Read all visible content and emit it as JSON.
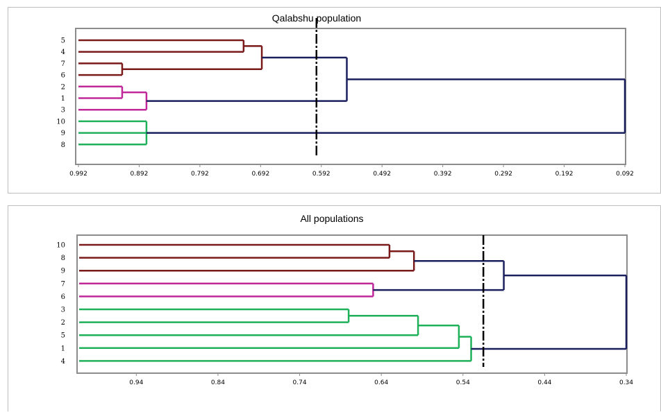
{
  "chart_data": [
    {
      "type": "dendrogram",
      "title": "Qalabshu population",
      "orientation": "leaves-left",
      "x_ticks": [
        "0.992",
        "0.892",
        "0.792",
        "0.692",
        "0.592",
        "0.492",
        "0.392",
        "0.292",
        "0.192",
        "0.092"
      ],
      "xlim": [
        0.992,
        0.092
      ],
      "cut_line": 0.6,
      "leaves": [
        "5",
        "4",
        "7",
        "6",
        "2",
        "1",
        "3",
        "10",
        "9",
        "8"
      ],
      "merges": [
        {
          "id": "a",
          "children": [
            "5",
            "4"
          ],
          "height": 0.72,
          "color": "#7a1a1a"
        },
        {
          "id": "b",
          "children": [
            "7",
            "6"
          ],
          "height": 0.92,
          "color": "#7a1a1a"
        },
        {
          "id": "c",
          "children": [
            "a",
            "b"
          ],
          "height": 0.69,
          "color": "#7a1a1a"
        },
        {
          "id": "d",
          "children": [
            "2",
            "1"
          ],
          "height": 0.92,
          "color": "#c0289a"
        },
        {
          "id": "e",
          "children": [
            "d",
            "3"
          ],
          "height": 0.88,
          "color": "#c0289a"
        },
        {
          "id": "f",
          "children": [
            "c",
            "e"
          ],
          "height": 0.55,
          "color": "#1a1f5e"
        },
        {
          "id": "g",
          "children": [
            "10",
            "9",
            "8"
          ],
          "height": 0.88,
          "color": "#1fb05a"
        },
        {
          "id": "h",
          "children": [
            "f",
            "g"
          ],
          "height": 0.092,
          "color": "#1a1f5e"
        }
      ],
      "colors": {
        "cluster1": "#7a1a1a",
        "cluster2": "#c0289a",
        "cluster3": "#1fb05a",
        "link": "#1a1f5e",
        "cut": "#000000",
        "axis": "#8c8c8c"
      }
    },
    {
      "type": "dendrogram",
      "title": "All populations",
      "orientation": "leaves-left",
      "x_ticks": [
        "0.94",
        "0.84",
        "0.74",
        "0.64",
        "0.54",
        "0.44",
        "0.34"
      ],
      "xlim": [
        1.01,
        0.34
      ],
      "cut_line": 0.515,
      "leaves": [
        "10",
        "8",
        "9",
        "7",
        "6",
        "3",
        "2",
        "5",
        "1",
        "4"
      ],
      "merges": [
        {
          "id": "a",
          "children": [
            "10",
            "8"
          ],
          "height": 0.63,
          "color": "#7a1a1a"
        },
        {
          "id": "b",
          "children": [
            "a",
            "9"
          ],
          "height": 0.6,
          "color": "#7a1a1a"
        },
        {
          "id": "c",
          "children": [
            "7",
            "6"
          ],
          "height": 0.65,
          "color": "#c0289a"
        },
        {
          "id": "d",
          "children": [
            "b",
            "c"
          ],
          "height": 0.49,
          "color": "#1a1f5e"
        },
        {
          "id": "e",
          "children": [
            "3",
            "2"
          ],
          "height": 0.68,
          "color": "#1fb05a"
        },
        {
          "id": "f",
          "children": [
            "e",
            "5"
          ],
          "height": 0.595,
          "color": "#1fb05a"
        },
        {
          "id": "g",
          "children": [
            "f",
            "1"
          ],
          "height": 0.545,
          "color": "#1fb05a"
        },
        {
          "id": "h",
          "children": [
            "g",
            "4"
          ],
          "height": 0.53,
          "color": "#1fb05a"
        },
        {
          "id": "i",
          "children": [
            "d",
            "h"
          ],
          "height": 0.34,
          "color": "#1a1f5e"
        }
      ],
      "colors": {
        "cluster1": "#7a1a1a",
        "cluster2": "#c0289a",
        "cluster3": "#1fb05a",
        "link": "#1a1f5e",
        "cut": "#000000",
        "axis": "#8c8c8c"
      }
    }
  ]
}
